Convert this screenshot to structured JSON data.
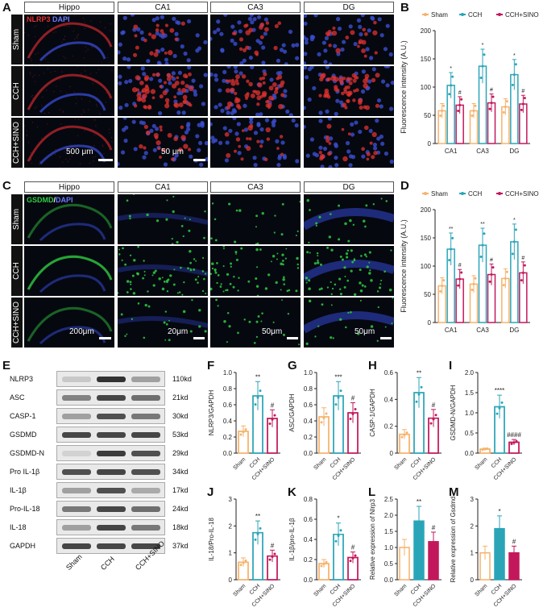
{
  "panels": {
    "A": "A",
    "B": "B",
    "C": "C",
    "D": "D",
    "E": "E",
    "F": "F",
    "G": "G",
    "H": "H",
    "I": "I",
    "J": "J",
    "K": "K",
    "L": "L",
    "M": "M"
  },
  "micrograph_A": {
    "stain_red": "NLRP3",
    "stain_blue": "DAPI",
    "headers": [
      "Hippo",
      "CA1",
      "CA3",
      "DG"
    ],
    "rows": [
      "Sham",
      "CCH",
      "CCH+SINO"
    ],
    "scale_left": "500 μm",
    "scale_right": "50 μm"
  },
  "micrograph_C": {
    "stain_green": "GSDMD",
    "stain_sep": "/",
    "stain_blue": "DAPI",
    "headers": [
      "Hippo",
      "CA1",
      "CA3",
      "DG"
    ],
    "rows": [
      "Sham",
      "CCH",
      "CCH+SINO"
    ],
    "scales": [
      "200μm",
      "20μm",
      "50μm",
      "50μm"
    ]
  },
  "western_E": {
    "proteins": [
      "NLRP3",
      "ASC",
      "CASP-1",
      "GSDMD",
      "GSDMD-N",
      "Pro IL-1β",
      "IL-1β",
      "Pro-IL-18",
      "IL-18",
      "GAPDH"
    ],
    "sizes": [
      "110kd",
      "21kd",
      "30kd",
      "53kd",
      "29kd",
      "34kd",
      "17kd",
      "24kd",
      "18kd",
      "37kd"
    ],
    "groups": [
      "Sham",
      "CCH",
      "CCH+SINO"
    ]
  },
  "colors": {
    "sham": "#f6b26b",
    "cch": "#2aa5b8",
    "sino": "#c2185b",
    "red_stain": "#e0322f",
    "blue_stain": "#3a4fd1",
    "green_stain": "#2ecc40"
  },
  "chart_data": [
    {
      "id": "B",
      "type": "bar",
      "ylabel": "Fluorescence intensity (A.U.)",
      "categories": [
        "CA1",
        "CA3",
        "DG"
      ],
      "legend": [
        "Sham",
        "CCH",
        "CCH+SINO"
      ],
      "ylim": [
        0,
        200
      ],
      "yticks": [
        0,
        50,
        100,
        150,
        200
      ],
      "series": [
        {
          "name": "Sham",
          "values": [
            58,
            58,
            65
          ]
        },
        {
          "name": "CCH",
          "values": [
            103,
            137,
            122
          ]
        },
        {
          "name": "CCH+SINO",
          "values": [
            68,
            72,
            70
          ]
        }
      ],
      "marks": [
        [
          "",
          "*",
          "#"
        ],
        [
          "",
          "*",
          "#"
        ],
        [
          "",
          "*",
          "#"
        ]
      ]
    },
    {
      "id": "D",
      "type": "bar",
      "ylabel": "Fluorescence intensity (A.U.)",
      "categories": [
        "CA1",
        "CA3",
        "DG"
      ],
      "legend": [
        "Sham",
        "CCH",
        "CCH+SINO"
      ],
      "ylim": [
        0,
        200
      ],
      "yticks": [
        0,
        50,
        100,
        150,
        200
      ],
      "series": [
        {
          "name": "Sham",
          "values": [
            65,
            68,
            78
          ]
        },
        {
          "name": "CCH",
          "values": [
            130,
            137,
            143
          ]
        },
        {
          "name": "CCH+SINO",
          "values": [
            77,
            85,
            88
          ]
        }
      ],
      "marks": [
        [
          "",
          "**",
          "#"
        ],
        [
          "",
          "**",
          "#"
        ],
        [
          "",
          "*",
          "#"
        ]
      ]
    },
    {
      "id": "F",
      "type": "bar",
      "ylabel": "NLRP3/GAPDH",
      "categories": [
        "Sham",
        "CCH",
        "CCH+SINO"
      ],
      "values": [
        0.27,
        0.71,
        0.43
      ],
      "ylim": [
        0,
        1.0
      ],
      "yticks": [
        0.0,
        0.2,
        0.4,
        0.6,
        0.8,
        1.0
      ],
      "marks": [
        "",
        "**",
        "#"
      ]
    },
    {
      "id": "G",
      "type": "bar",
      "ylabel": "ASC/GAPDH",
      "categories": [
        "Sham",
        "CCH",
        "CCH+SINO"
      ],
      "values": [
        0.45,
        0.71,
        0.5
      ],
      "ylim": [
        0,
        1.0
      ],
      "yticks": [
        0.0,
        0.2,
        0.4,
        0.6,
        0.8,
        1.0
      ],
      "marks": [
        "",
        "***",
        "#"
      ]
    },
    {
      "id": "H",
      "type": "bar",
      "ylabel": "CASP-1/GAPDH",
      "categories": [
        "Sham",
        "CCH",
        "CCH+SINO"
      ],
      "values": [
        0.14,
        0.45,
        0.26
      ],
      "ylim": [
        0,
        0.6
      ],
      "yticks": [
        0.0,
        0.2,
        0.4,
        0.6
      ],
      "marks": [
        "",
        "**",
        "#"
      ]
    },
    {
      "id": "I",
      "type": "bar",
      "ylabel": "GSDMD-N/GAPDH",
      "categories": [
        "Sham",
        "CCH",
        "CCH+SINO"
      ],
      "values": [
        0.1,
        1.15,
        0.27
      ],
      "ylim": [
        0,
        2.0
      ],
      "yticks": [
        0.0,
        0.5,
        1.0,
        1.5,
        2.0
      ],
      "marks": [
        "",
        "****",
        "####"
      ]
    },
    {
      "id": "J",
      "type": "bar",
      "ylabel": "IL-18/Pro-IL-18",
      "categories": [
        "Sham",
        "CCH",
        "CCH+SINO"
      ],
      "values": [
        0.65,
        1.75,
        0.88
      ],
      "ylim": [
        0,
        3
      ],
      "yticks": [
        0,
        1,
        2,
        3
      ],
      "marks": [
        "",
        "**",
        "#"
      ]
    },
    {
      "id": "K",
      "type": "bar",
      "ylabel": "IL-1β/pro-IL-1β",
      "categories": [
        "Sham",
        "CCH",
        "CCH+SINO"
      ],
      "values": [
        0.16,
        0.45,
        0.22
      ],
      "ylim": [
        0,
        0.8
      ],
      "yticks": [
        0.0,
        0.2,
        0.4,
        0.6,
        0.8
      ],
      "marks": [
        "",
        "*",
        "#"
      ]
    },
    {
      "id": "L",
      "type": "bar",
      "ylabel": "Relative expression of Nlrp3",
      "categories": [
        "Sham",
        "CCH",
        "CCH+SINO"
      ],
      "values": [
        1.0,
        1.82,
        1.18
      ],
      "ylim": [
        0,
        2.5
      ],
      "yticks": [
        0.0,
        0.5,
        1.0,
        1.5,
        2.0,
        2.5
      ],
      "marks": [
        "",
        "**",
        "#"
      ]
    },
    {
      "id": "M",
      "type": "bar",
      "ylabel": "Relative expression of Gsdmd",
      "categories": [
        "Sham",
        "CCH",
        "CCH+SINO"
      ],
      "values": [
        1.0,
        1.9,
        1.0
      ],
      "ylim": [
        0,
        3
      ],
      "yticks": [
        0,
        1,
        2,
        3
      ],
      "marks": [
        "",
        "*",
        "#"
      ]
    }
  ]
}
